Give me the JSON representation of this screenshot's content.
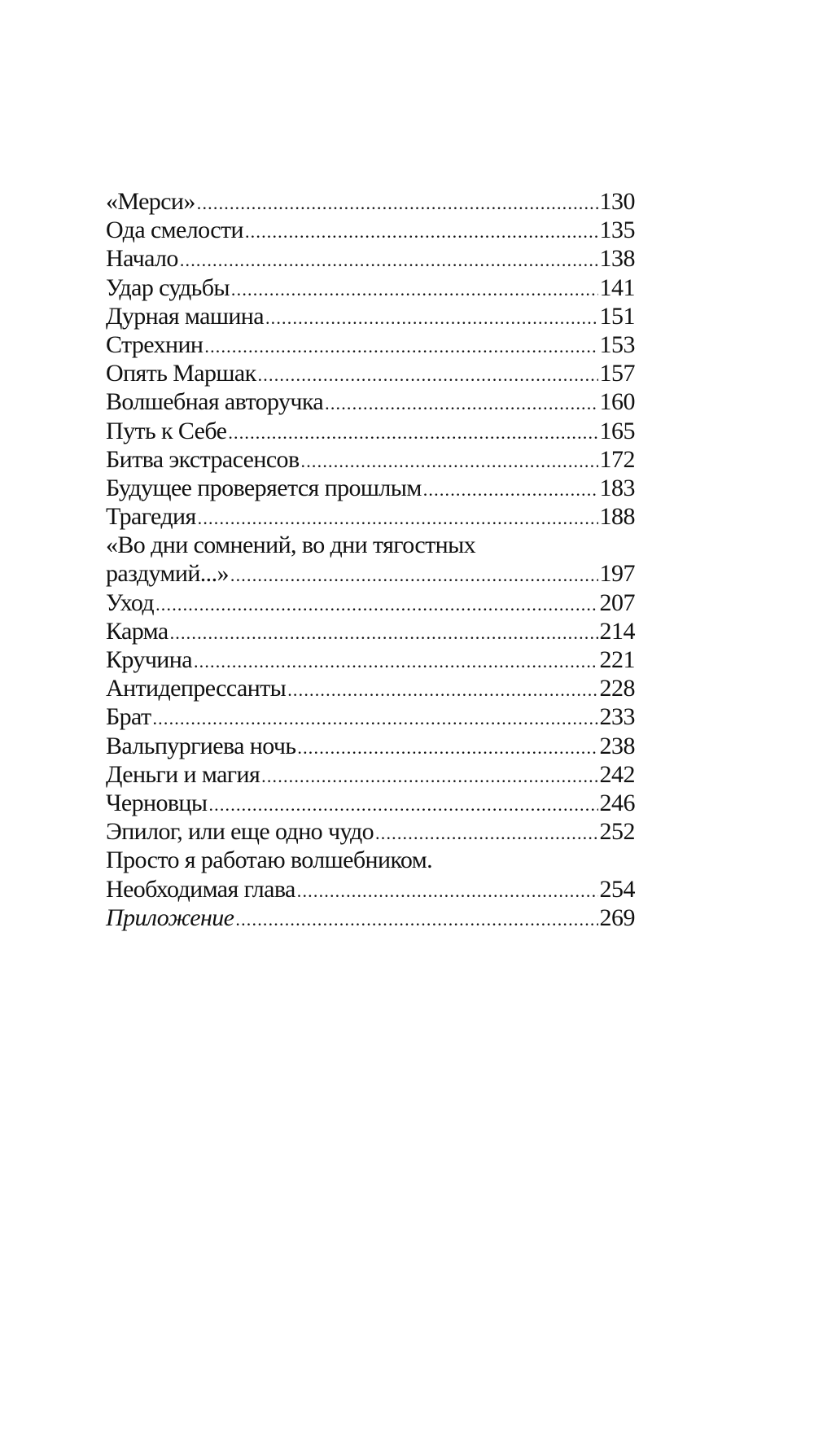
{
  "toc": {
    "entries": [
      {
        "title": "«Мерси»",
        "page": "130"
      },
      {
        "title": "Ода смелости",
        "page": "135"
      },
      {
        "title": "Начало",
        "page": "138"
      },
      {
        "title": "Удар судьбы",
        "page": "141"
      },
      {
        "title": "Дурная машина",
        "page": "151"
      },
      {
        "title": "Стрехнин",
        "page": "153"
      },
      {
        "title": "Опять Маршак",
        "page": "157"
      },
      {
        "title": "Волшебная авторучка",
        "page": "160"
      },
      {
        "title": "Путь к Себе",
        "page": "165"
      },
      {
        "title": "Битва экстрасенсов",
        "page": "172"
      },
      {
        "title": "Будущее проверяется прошлым",
        "page": "183"
      },
      {
        "title": "Трагедия",
        "page": "188"
      },
      {
        "title_line1": "«Во дни сомнений, во дни тягостных",
        "title": "раздумий...»",
        "page": "197"
      },
      {
        "title": "Уход",
        "page": "207"
      },
      {
        "title": "Карма",
        "page": "214"
      },
      {
        "title": "Кручина",
        "page": "221"
      },
      {
        "title": "Антидепрессанты",
        "page": "228"
      },
      {
        "title": "Брат",
        "page": "233"
      },
      {
        "title": "Вальпургиева ночь",
        "page": "238"
      },
      {
        "title": "Деньги и магия",
        "page": "242"
      },
      {
        "title": "Черновцы",
        "page": "246"
      },
      {
        "title": "Эпилог, или еще одно чудо",
        "page": "252"
      },
      {
        "title_line1": "Просто я работаю волшебником.",
        "title": "Необходимая глава",
        "page": "254"
      },
      {
        "title": "Приложение",
        "page": "269",
        "italic": true
      }
    ]
  }
}
